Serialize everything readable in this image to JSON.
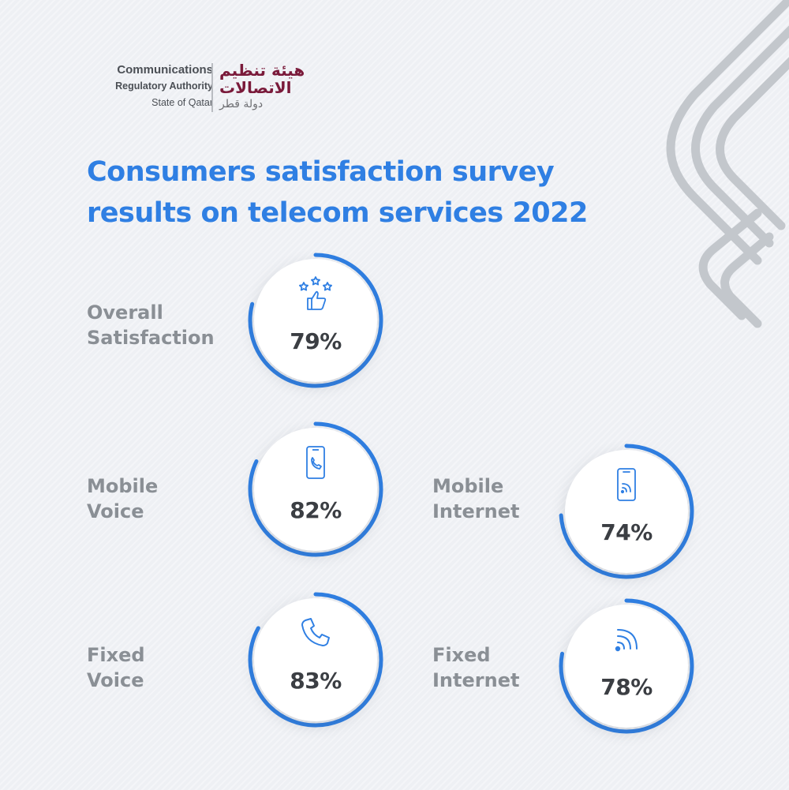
{
  "logo": {
    "en_line1": "Communications",
    "en_line2": "Regulatory Authority",
    "en_line3": "State of Qatar",
    "ar_line1": "هيئة تنظيم",
    "ar_line2": "الاتصالات",
    "ar_line3": "دولة قطر"
  },
  "title_line1": "Consumers satisfaction survey",
  "title_line2": "results on telecom services 2022",
  "colors": {
    "accent": "#2f7fe3",
    "label": "#8a8f95",
    "value": "#3b3e43",
    "brand": "#7a1a3a"
  },
  "chart_data": {
    "type": "pie",
    "title": "Consumers satisfaction survey results on telecom services 2022",
    "unit": "%",
    "categories": [
      {
        "name_line1": "Overall",
        "name_line2": "Satisfaction",
        "value": 79,
        "label": "79%",
        "icon": "stars-thumbs-up-icon"
      },
      {
        "name_line1": "Mobile",
        "name_line2": "Voice",
        "value": 82,
        "label": "82%",
        "icon": "smartphone-call-icon"
      },
      {
        "name_line1": "Mobile",
        "name_line2": "Internet",
        "value": 74,
        "label": "74%",
        "icon": "smartphone-wifi-icon"
      },
      {
        "name_line1": "Fixed",
        "name_line2": "Voice",
        "value": 83,
        "label": "83%",
        "icon": "phone-handset-icon"
      },
      {
        "name_line1": "Fixed",
        "name_line2": "Internet",
        "value": 78,
        "label": "78%",
        "icon": "wifi-signal-icon"
      }
    ]
  }
}
